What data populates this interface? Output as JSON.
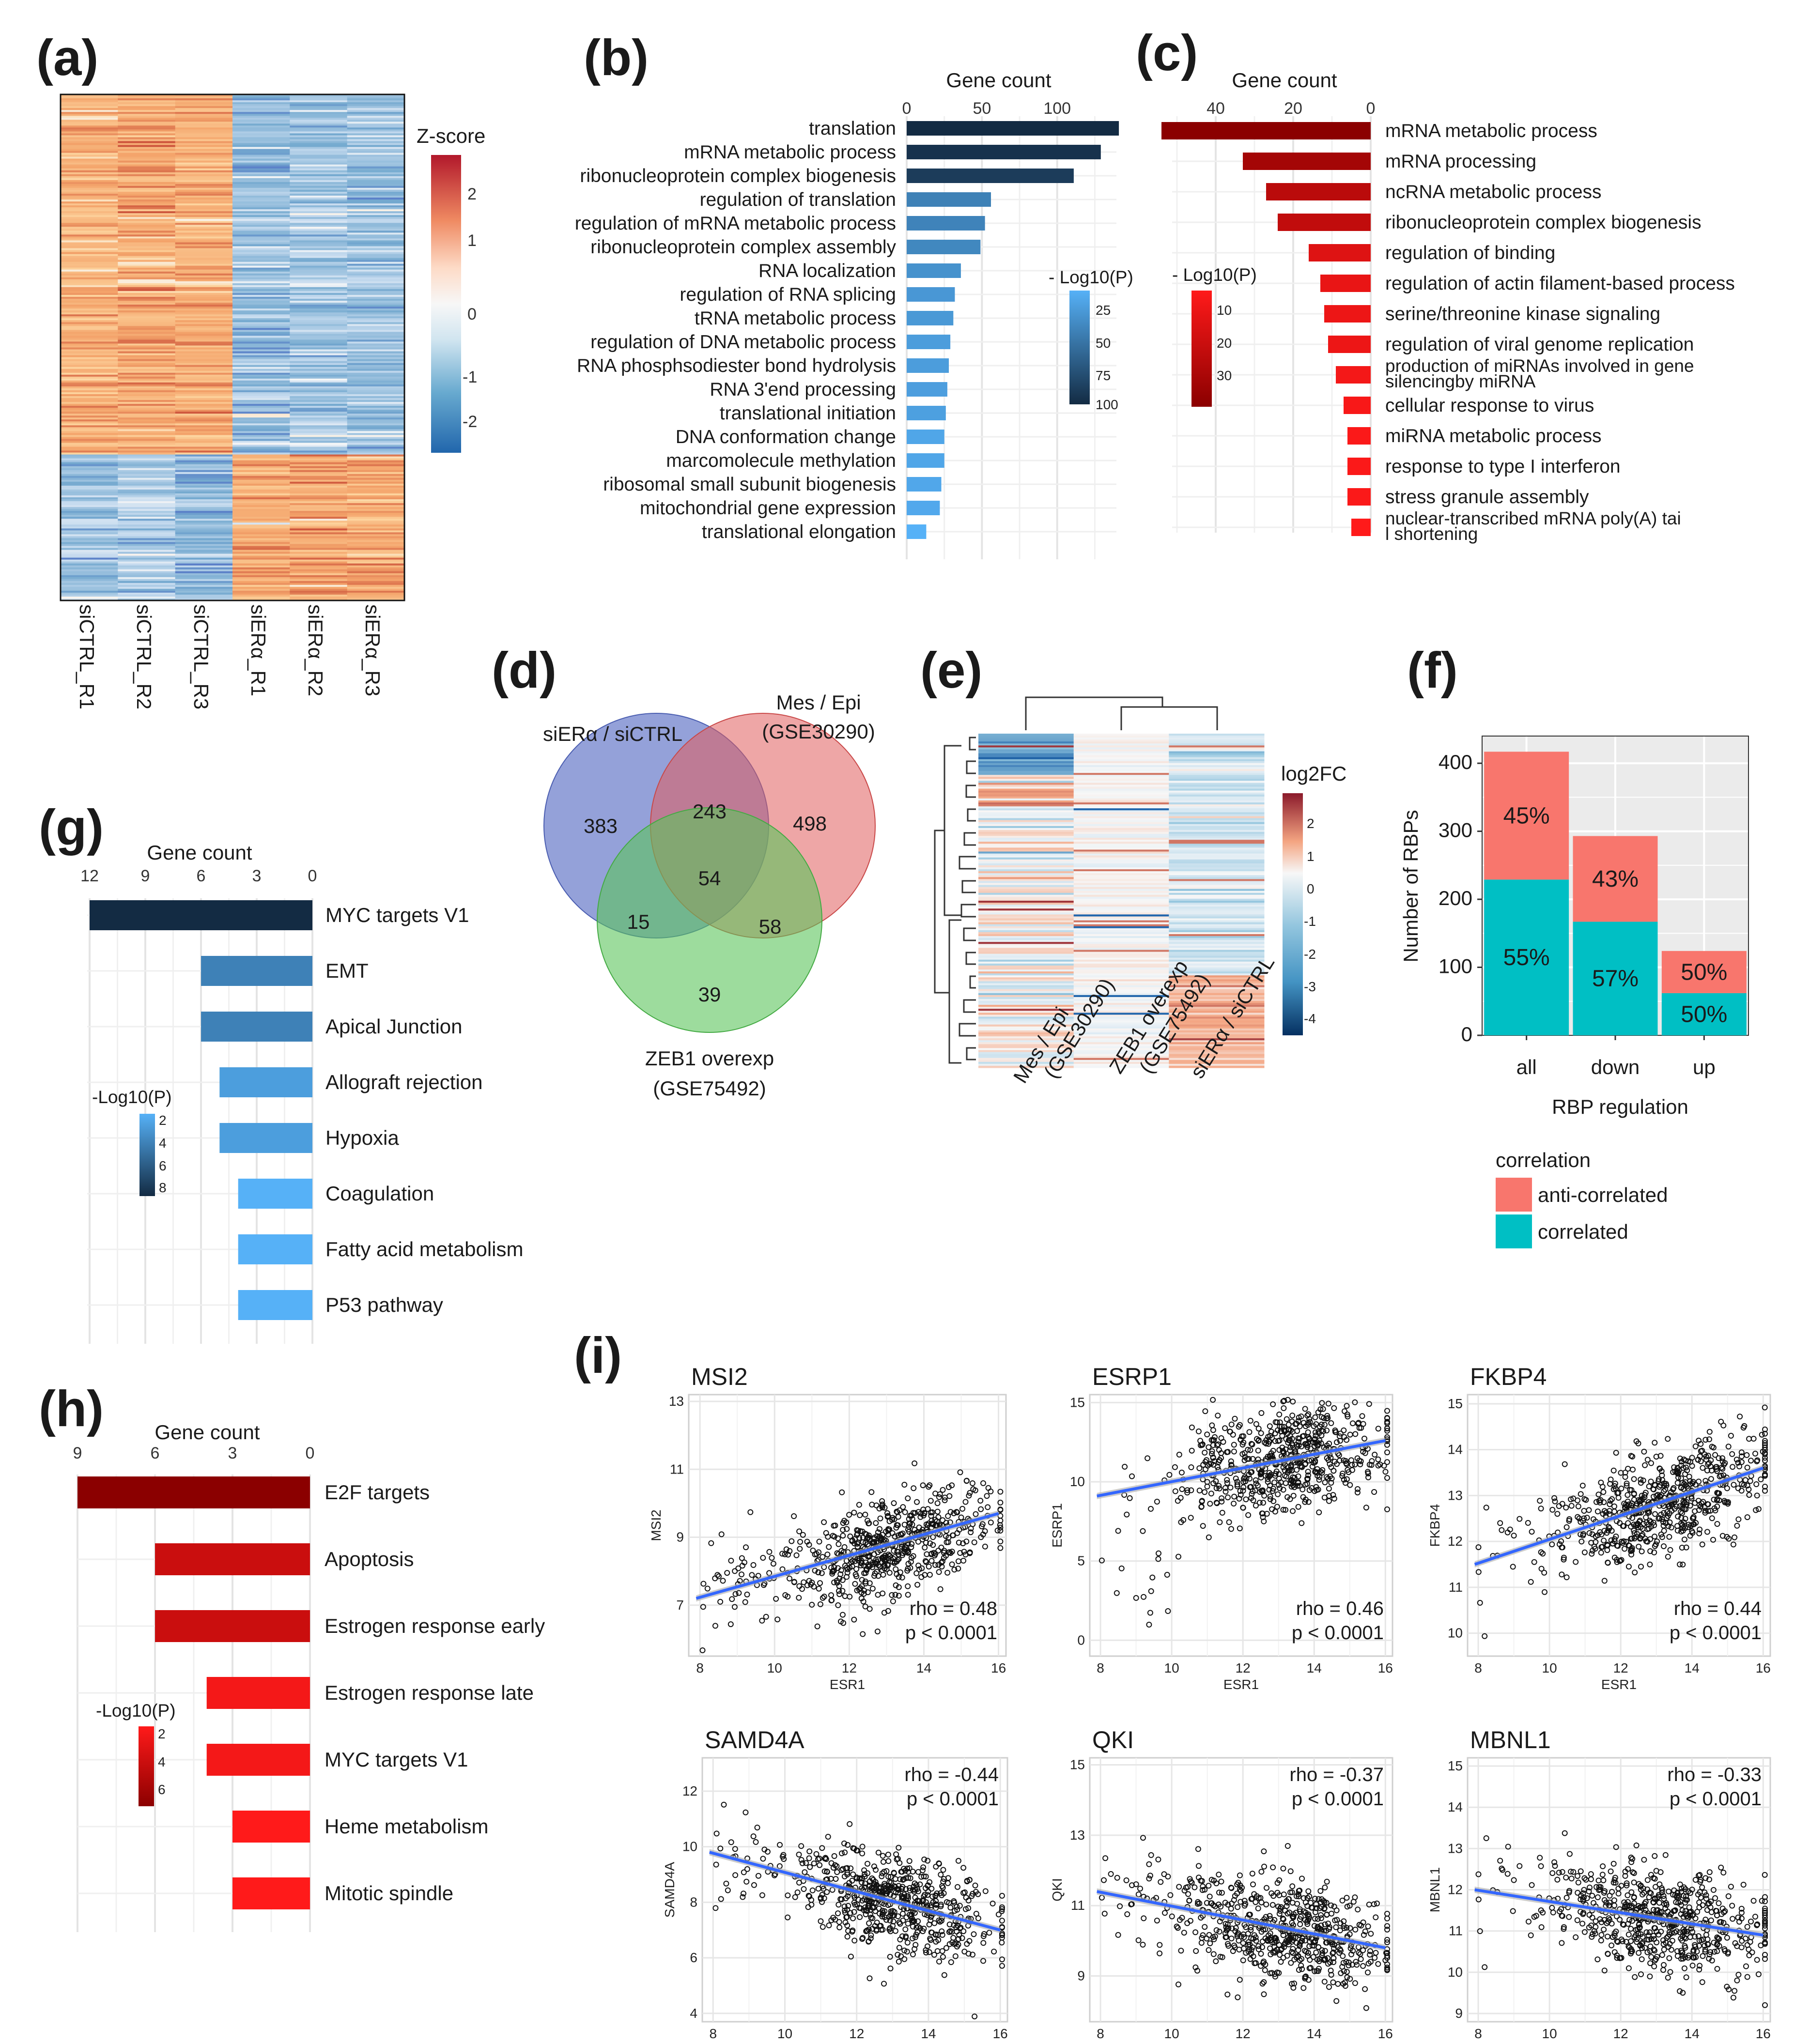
{
  "panel_labels": [
    "(a)",
    "(b)",
    "(c)",
    "(d)",
    "(e)",
    "(f)",
    "(g)",
    "(h)",
    "(i)"
  ],
  "colors": {
    "blue_dark": "#132B43",
    "blue_light": "#56B1F7",
    "red_dark": "#8B0000",
    "red_light": "#FF1A1A",
    "venn_blue": "#5b6fc4",
    "venn_red": "#e05c5c",
    "venn_green": "#5cc45c",
    "anti_correlated": "#F8766D",
    "correlated": "#00BFC4",
    "fit_line": "#3366FF"
  },
  "chart_data": [
    {
      "id": "a",
      "type": "heatmap",
      "columns": [
        "siCTRL_R1",
        "siCTRL_R2",
        "siCTRL_R3",
        "siERα_R1",
        "siERα_R2",
        "siERα_R3"
      ],
      "legend_title": "Z-score",
      "legend_ticks": [
        "2",
        "1",
        "0",
        "-1",
        "-2"
      ],
      "clusters": [
        {
          "name": "top",
          "row_fraction": 0.71,
          "means": [
            0.9,
            1.0,
            0.95,
            -0.8,
            -0.7,
            -0.75
          ]
        },
        {
          "name": "bottom",
          "row_fraction": 0.29,
          "means": [
            -0.8,
            -0.6,
            -0.9,
            1.0,
            1.1,
            1.0
          ]
        }
      ]
    },
    {
      "id": "b",
      "type": "bar",
      "orientation": "horizontal",
      "xlabel": "Gene count",
      "xticks": [
        "0",
        "50",
        "100"
      ],
      "xlim": [
        0,
        140
      ],
      "legend_title": "- Log10(P)",
      "legend_ticks": [
        "25",
        "50",
        "75",
        "100"
      ],
      "categories": [
        "translation",
        "mRNA metabolic process",
        "ribonucleoprotein complex biogenesis",
        "regulation of translation",
        "regulation of mRNA metabolic process",
        "ribonucleoprotein complex assembly",
        "RNA localization",
        "regulation of RNA splicing",
        "tRNA metabolic process",
        "regulation of DNA metabolic process",
        "RNA phosphsodiester bond hydrolysis",
        "RNA 3'end processing",
        "translational initiation",
        "DNA conformation change",
        "marcomolecule methylation",
        "ribosomal small subunit biogenesis",
        "mitochondrial gene expression",
        "translational elongation"
      ],
      "values": [
        141,
        129,
        111,
        56,
        52,
        49,
        36,
        32,
        31,
        29,
        28,
        27,
        26,
        25,
        25,
        23,
        22,
        13
      ],
      "color_values": [
        100,
        95,
        88,
        40,
        38,
        35,
        28,
        24,
        23,
        20,
        20,
        19,
        18,
        14,
        14,
        13,
        12,
        6
      ]
    },
    {
      "id": "c",
      "type": "bar",
      "orientation": "horizontal",
      "xlabel": "Gene count",
      "xticks": [
        "40",
        "20",
        "0"
      ],
      "xlim": [
        0,
        55
      ],
      "legend_title": "- Log10(P)",
      "legend_ticks": [
        "10",
        "20",
        "30"
      ],
      "categories": [
        "mRNA metabolic process",
        "mRNA processing",
        "ncRNA metabolic process",
        "ribonucleoprotein complex biogenesis",
        "regulation of binding",
        "regulation of actin filament-based process",
        "serine/threonine kinase signaling",
        "regulation of viral genome replication",
        "production of miRNAs involved in gene silencingby miRNA",
        "cellular response to virus",
        "miRNA metabolic process",
        "response to type I interferon",
        "stress granule assembly",
        "nuclear-transcribed mRNA poly(A) tail shortening"
      ],
      "values": [
        54,
        33,
        27,
        24,
        16,
        13,
        12,
        11,
        9,
        7,
        6,
        6,
        6,
        5
      ],
      "color_values": [
        35,
        28,
        22,
        20,
        12,
        9,
        8,
        8,
        6,
        5,
        4,
        4,
        4,
        3
      ]
    },
    {
      "id": "d",
      "type": "venn",
      "sets": [
        "siERα / siCTRL",
        "Mes / Epi",
        "(GSE30290)",
        "ZEB1 overexp",
        "(GSE75492)"
      ],
      "counts": {
        "only_A": 383,
        "A_B": 243,
        "only_B": 498,
        "A_B_C": 54,
        "A_C": 15,
        "B_C": 58,
        "only_C": 39
      }
    },
    {
      "id": "e",
      "type": "heatmap",
      "columns": [
        "Mes / Epi",
        "(GSE30290)",
        "ZEB1 overexp",
        "(GSE75492)",
        "siERα / siCTRL"
      ],
      "legend_title": "log2FC",
      "legend_ticks": [
        "2",
        "1",
        "0",
        "-1",
        "-2",
        "-3",
        "-4"
      ]
    },
    {
      "id": "f",
      "type": "bar",
      "stacked": true,
      "categories": [
        "all",
        "down",
        "up"
      ],
      "series": [
        {
          "name": "correlated",
          "values": [
            229,
            167,
            62
          ],
          "labels": [
            "55%",
            "57%",
            "50%"
          ]
        },
        {
          "name": "anti-correlated",
          "values": [
            188,
            126,
            62
          ],
          "labels": [
            "45%",
            "43%",
            "50%"
          ]
        }
      ],
      "xlabel": "RBP regulation",
      "ylabel": "Number of RBPs",
      "ylim": [
        0,
        440
      ],
      "yticks": [
        "0",
        "100",
        "200",
        "300",
        "400"
      ],
      "legend_title": "correlation"
    },
    {
      "id": "g",
      "type": "bar",
      "orientation": "horizontal",
      "xlabel": "Gene count",
      "xticks": [
        "12",
        "9",
        "6",
        "3",
        "0"
      ],
      "xlim": [
        0,
        12
      ],
      "legend_title": "-Log10(P)",
      "legend_ticks": [
        "2",
        "4",
        "6",
        "8"
      ],
      "categories": [
        "MYC targets V1",
        "EMT",
        "Apical Junction",
        "Allograft rejection",
        "Hypoxia",
        "Coagulation",
        "Fatty acid metabolism",
        "P53 pathway"
      ],
      "values": [
        12,
        6,
        6,
        5,
        5,
        4,
        4,
        4
      ],
      "color_values": [
        8.5,
        4,
        4,
        2.5,
        2.5,
        1.5,
        1.5,
        1.5
      ]
    },
    {
      "id": "h",
      "type": "bar",
      "orientation": "horizontal",
      "xlabel": "Gene count",
      "xticks": [
        "9",
        "6",
        "3",
        "0"
      ],
      "xlim": [
        0,
        9
      ],
      "legend_title": "-Log10(P)",
      "legend_ticks": [
        "2",
        "4",
        "6"
      ],
      "categories": [
        "E2F targets",
        "Apoptosis",
        "Estrogen response early",
        "Estrogen response late",
        "MYC targets V1",
        "Heme metabolism",
        "Mitotic spindle"
      ],
      "values": [
        9,
        6,
        6,
        4,
        4,
        3,
        3
      ],
      "color_values": [
        7,
        4,
        4,
        2,
        2,
        1.5,
        1.5
      ]
    },
    {
      "id": "i",
      "type": "scatter",
      "xlabel": "ESR1",
      "plots": [
        {
          "gene": "MSI2",
          "ylabel": "MSI2",
          "xlim": [
            7.7,
            16.2
          ],
          "ylim": [
            5.5,
            13.2
          ],
          "xticks": [
            "8",
            "10",
            "12",
            "14",
            "16"
          ],
          "yticks": [
            "7",
            "9",
            "11",
            "13"
          ],
          "fit": [
            [
              7.9,
              7.2
            ],
            [
              16,
              9.7
            ]
          ],
          "rho": "rho = 0.48",
          "p": "p < 0.0001",
          "stats_pos": "bottom-right"
        },
        {
          "gene": "ESRP1",
          "ylabel": "ESRP1",
          "xlim": [
            7.7,
            16.2
          ],
          "ylim": [
            -1,
            15.5
          ],
          "xticks": [
            "8",
            "10",
            "12",
            "14",
            "16"
          ],
          "yticks": [
            "0",
            "5",
            "10",
            "15"
          ],
          "fit": [
            [
              7.9,
              9.1
            ],
            [
              16,
              12.6
            ]
          ],
          "rho": "rho = 0.46",
          "p": "p < 0.0001",
          "stats_pos": "bottom-right"
        },
        {
          "gene": "FKBP4",
          "ylabel": "FKBP4",
          "xlim": [
            7.7,
            16.2
          ],
          "ylim": [
            9.5,
            15.2
          ],
          "xticks": [
            "8",
            "10",
            "12",
            "14",
            "16"
          ],
          "yticks": [
            "10",
            "11",
            "12",
            "13",
            "14",
            "15"
          ],
          "fit": [
            [
              7.9,
              11.5
            ],
            [
              16,
              13.6
            ]
          ],
          "rho": "rho = 0.44",
          "p": "p < 0.0001",
          "stats_pos": "bottom-right"
        },
        {
          "gene": "SAMD4A",
          "ylabel": "SAMD4A",
          "xlim": [
            7.7,
            16.2
          ],
          "ylim": [
            3.7,
            13.2
          ],
          "xticks": [
            "8",
            "10",
            "12",
            "14",
            "16"
          ],
          "yticks": [
            "4",
            "6",
            "8",
            "10",
            "12"
          ],
          "fit": [
            [
              7.9,
              9.8
            ],
            [
              16,
              7.0
            ]
          ],
          "rho": "rho = -0.44",
          "p": "p < 0.0001",
          "stats_pos": "top-right"
        },
        {
          "gene": "QKI",
          "ylabel": "QKI",
          "xlim": [
            7.7,
            16.2
          ],
          "ylim": [
            7.7,
            15.2
          ],
          "xticks": [
            "8",
            "10",
            "12",
            "14",
            "16"
          ],
          "yticks": [
            "9",
            "11",
            "13",
            "15"
          ],
          "fit": [
            [
              7.9,
              11.4
            ],
            [
              16,
              9.8
            ]
          ],
          "rho": "rho = -0.37",
          "p": "p < 0.0001",
          "stats_pos": "top-right"
        },
        {
          "gene": "MBNL1",
          "ylabel": "MBNL1",
          "xlim": [
            7.7,
            16.2
          ],
          "ylim": [
            8.8,
            15.2
          ],
          "xticks": [
            "8",
            "10",
            "12",
            "14",
            "16"
          ],
          "yticks": [
            "9",
            "10",
            "11",
            "12",
            "13",
            "14",
            "15"
          ],
          "fit": [
            [
              7.9,
              12.0
            ],
            [
              16,
              10.9
            ]
          ],
          "rho": "rho = -0.33",
          "p": "p < 0.0001",
          "stats_pos": "top-right"
        }
      ]
    }
  ]
}
